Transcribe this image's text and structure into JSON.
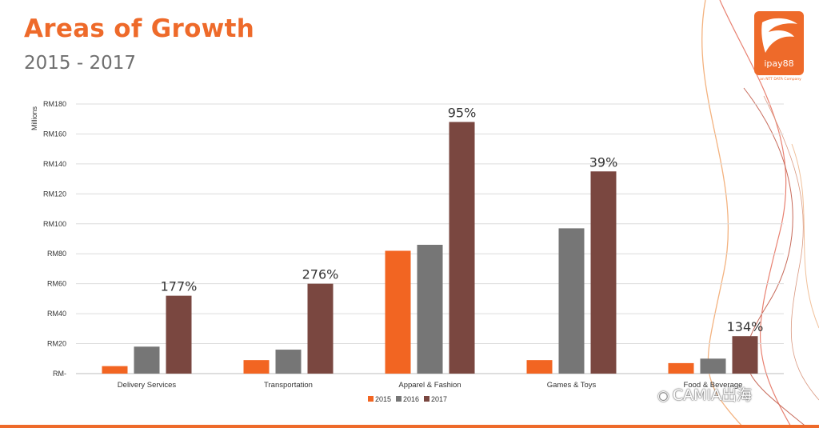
{
  "header": {
    "title": "Areas of Growth",
    "subtitle": "2015 - 2017"
  },
  "logo": {
    "text": "ipay88",
    "subtext": "an NTT DATA Company"
  },
  "watermark": {
    "text": "CAMIA出海"
  },
  "colors": {
    "accent": "#ee6a2a",
    "s2015": "#f26522",
    "s2016": "#767676",
    "s2017": "#7a4740"
  },
  "chart_data": {
    "type": "bar",
    "title": "",
    "ylabel": "Millions",
    "xlabel": "",
    "ylim": [
      0,
      180
    ],
    "yticks": [
      0,
      20,
      40,
      60,
      80,
      100,
      120,
      140,
      160,
      180
    ],
    "ytick_labels": [
      "RM-",
      "RM20",
      "RM40",
      "RM60",
      "RM80",
      "RM100",
      "RM120",
      "RM140",
      "RM160",
      "RM180"
    ],
    "categories": [
      "Delivery Services",
      "Transportation",
      "Apparel & Fashion",
      "Games & Toys",
      "Food & Beverage"
    ],
    "series": [
      {
        "name": "2015",
        "color": "#f26522",
        "values": [
          5,
          9,
          82,
          9,
          7
        ]
      },
      {
        "name": "2016",
        "color": "#767676",
        "values": [
          18,
          16,
          86,
          97,
          10
        ]
      },
      {
        "name": "2017",
        "color": "#7a4740",
        "values": [
          52,
          60,
          168,
          135,
          25
        ]
      }
    ],
    "annotations": [
      "177%",
      "276%",
      "95%",
      "39%",
      "134%"
    ],
    "legend_position": "bottom-center",
    "grid": true
  }
}
